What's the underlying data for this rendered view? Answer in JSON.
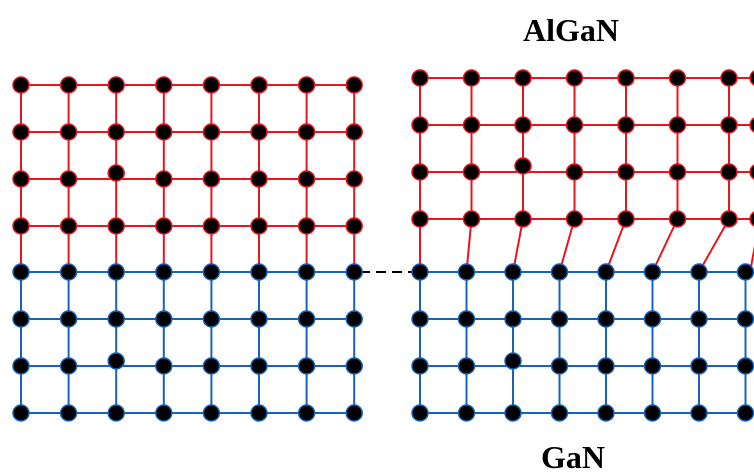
{
  "labels": {
    "top_layer": "AlGaN",
    "bottom_layer": "GaN"
  },
  "colors": {
    "algan_bond": "#e8141e",
    "gan_bond": "#1464be",
    "atom": "#000000",
    "connector": "#000000",
    "background": "#ffffff"
  },
  "lattices": {
    "left_panel": {
      "description_state": "strained-coherent",
      "top_rows": 4,
      "bottom_rows": 4,
      "columns": 8
    },
    "right_panel": {
      "description_state": "relaxed-misfit",
      "top_rows": 4,
      "bottom_rows": 4,
      "top_columns": 7,
      "bottom_columns": 8
    }
  }
}
